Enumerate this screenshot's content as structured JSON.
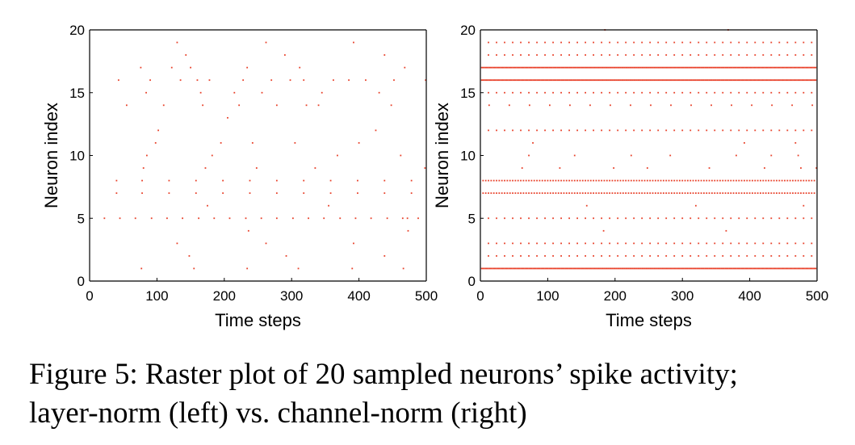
{
  "caption": {
    "line1": "Figure 5: Raster plot of 20 sampled neurons’ spike activity;",
    "line2": "layer-norm (left) vs. channel-norm (right)"
  },
  "colors": {
    "spike": "#e8412a",
    "axis": "#000000"
  },
  "chart_data": [
    {
      "type": "scatter",
      "title": "",
      "xlabel": "Time steps",
      "ylabel": "Neuron index",
      "xlim": [
        0,
        500
      ],
      "ylim": [
        0,
        20
      ],
      "xticks": [
        0,
        100,
        200,
        300,
        400,
        500
      ],
      "yticks": [
        0,
        5,
        10,
        15,
        20
      ],
      "grid": false,
      "legend": "none",
      "series": [
        {
          "values": [
            [
              22,
              5
            ],
            [
              45,
              5
            ],
            [
              68,
              5
            ],
            [
              92,
              5
            ],
            [
              115,
              5
            ],
            [
              138,
              5
            ],
            [
              162,
              5
            ],
            [
              185,
              5
            ],
            [
              208,
              5
            ],
            [
              232,
              5
            ],
            [
              255,
              5
            ],
            [
              278,
              5
            ],
            [
              302,
              5
            ],
            [
              325,
              5
            ],
            [
              348,
              5
            ],
            [
              372,
              5
            ],
            [
              395,
              5
            ],
            [
              418,
              5
            ],
            [
              442,
              5
            ],
            [
              465,
              5
            ],
            [
              488,
              5
            ],
            [
              40,
              8
            ],
            [
              40,
              7
            ],
            [
              78,
              8
            ],
            [
              78,
              7
            ],
            [
              118,
              8
            ],
            [
              118,
              7
            ],
            [
              158,
              8
            ],
            [
              158,
              7
            ],
            [
              198,
              8
            ],
            [
              198,
              7
            ],
            [
              238,
              8
            ],
            [
              238,
              7
            ],
            [
              278,
              8
            ],
            [
              278,
              7
            ],
            [
              318,
              8
            ],
            [
              318,
              7
            ],
            [
              358,
              8
            ],
            [
              358,
              7
            ],
            [
              398,
              8
            ],
            [
              398,
              7
            ],
            [
              438,
              8
            ],
            [
              438,
              7
            ],
            [
              478,
              8
            ],
            [
              478,
              7
            ],
            [
              43,
              16
            ],
            [
              55,
              14
            ],
            [
              76,
              17
            ],
            [
              84,
              15
            ],
            [
              90,
              16
            ],
            [
              98,
              11
            ],
            [
              102,
              12
            ],
            [
              85,
              10
            ],
            [
              80,
              9
            ],
            [
              110,
              14
            ],
            [
              122,
              17
            ],
            [
              130,
              19
            ],
            [
              135,
              16
            ],
            [
              143,
              18
            ],
            [
              150,
              17
            ],
            [
              160,
              16
            ],
            [
              165,
              15
            ],
            [
              168,
              14
            ],
            [
              172,
              9
            ],
            [
              175,
              6
            ],
            [
              178,
              16
            ],
            [
              182,
              10
            ],
            [
              195,
              11
            ],
            [
              205,
              13
            ],
            [
              215,
              15
            ],
            [
              222,
              14
            ],
            [
              228,
              16
            ],
            [
              234,
              17
            ],
            [
              242,
              11
            ],
            [
              248,
              9
            ],
            [
              256,
              15
            ],
            [
              262,
              19
            ],
            [
              270,
              16
            ],
            [
              278,
              14
            ],
            [
              290,
              18
            ],
            [
              298,
              16
            ],
            [
              305,
              11
            ],
            [
              312,
              17
            ],
            [
              318,
              16
            ],
            [
              322,
              14
            ],
            [
              335,
              9
            ],
            [
              340,
              14
            ],
            [
              345,
              15
            ],
            [
              355,
              6
            ],
            [
              362,
              16
            ],
            [
              368,
              10
            ],
            [
              385,
              16
            ],
            [
              392,
              19
            ],
            [
              400,
              11
            ],
            [
              410,
              16
            ],
            [
              425,
              12
            ],
            [
              430,
              15
            ],
            [
              438,
              18
            ],
            [
              448,
              14
            ],
            [
              452,
              16
            ],
            [
              462,
              10
            ],
            [
              468,
              17
            ],
            [
              472,
              5
            ],
            [
              498,
              9
            ],
            [
              499,
              16
            ],
            [
              77,
              1
            ],
            [
              130,
              3
            ],
            [
              148,
              2
            ],
            [
              155,
              1
            ],
            [
              234,
              1
            ],
            [
              236,
              4
            ],
            [
              262,
              3
            ],
            [
              292,
              2
            ],
            [
              310,
              1
            ],
            [
              390,
              1
            ],
            [
              392,
              3
            ],
            [
              438,
              2
            ],
            [
              466,
              1
            ],
            [
              473,
              4
            ]
          ]
        }
      ]
    },
    {
      "type": "scatter",
      "title": "",
      "xlabel": "Time steps",
      "ylabel": "Neuron index",
      "xlim": [
        0,
        500
      ],
      "ylim": [
        0,
        20
      ],
      "xticks": [
        0,
        100,
        200,
        300,
        400,
        500
      ],
      "yticks": [
        0,
        5,
        10,
        15,
        20
      ],
      "grid": false,
      "legend": "none",
      "rows": [
        {
          "neuron": 17,
          "start": 2,
          "step": 2
        },
        {
          "neuron": 16,
          "start": 2,
          "step": 2
        },
        {
          "neuron": 1,
          "start": 2,
          "step": 2
        },
        {
          "neuron": 8,
          "start": 4,
          "step": 4
        },
        {
          "neuron": 7,
          "start": 4,
          "step": 4
        },
        {
          "neuron": 19,
          "start": 12,
          "step": 12
        },
        {
          "neuron": 18,
          "start": 12,
          "step": 12
        },
        {
          "neuron": 15,
          "start": 12,
          "step": 12
        },
        {
          "neuron": 12,
          "start": 12,
          "step": 12
        },
        {
          "neuron": 3,
          "start": 12,
          "step": 12
        },
        {
          "neuron": 2,
          "start": 12,
          "step": 12
        },
        {
          "neuron": 5,
          "start": 12,
          "step": 12
        },
        {
          "neuron": 14,
          "start": 13,
          "step": 30
        }
      ],
      "points": [
        [
          62,
          9
        ],
        [
          72,
          10
        ],
        [
          78,
          11
        ],
        [
          118,
          9
        ],
        [
          140,
          10
        ],
        [
          158,
          6
        ],
        [
          198,
          9
        ],
        [
          224,
          10
        ],
        [
          248,
          9
        ],
        [
          282,
          10
        ],
        [
          320,
          6
        ],
        [
          340,
          9
        ],
        [
          380,
          10
        ],
        [
          392,
          11
        ],
        [
          422,
          9
        ],
        [
          432,
          10
        ],
        [
          468,
          11
        ],
        [
          472,
          10
        ],
        [
          476,
          9
        ],
        [
          480,
          6
        ],
        [
          499,
          9
        ],
        [
          183,
          4
        ],
        [
          365,
          4
        ],
        [
          185,
          20
        ],
        [
          368,
          20
        ]
      ]
    }
  ]
}
